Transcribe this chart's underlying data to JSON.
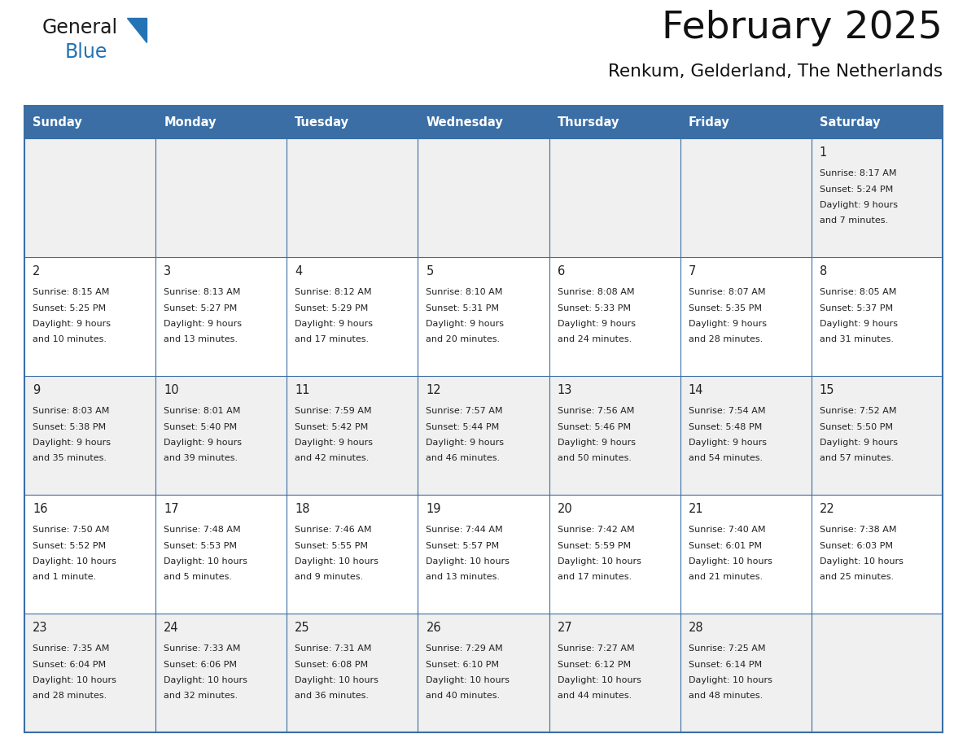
{
  "title": "February 2025",
  "subtitle": "Renkum, Gelderland, The Netherlands",
  "days_of_week": [
    "Sunday",
    "Monday",
    "Tuesday",
    "Wednesday",
    "Thursday",
    "Friday",
    "Saturday"
  ],
  "header_bg": "#3a6ea5",
  "header_fg": "#ffffff",
  "row_bg_odd": "#f0f0f0",
  "row_bg_even": "#ffffff",
  "border_color": "#3a6ea5",
  "cell_border_color": "#3a6ea5",
  "text_color": "#222222",
  "day_num_color": "#222222",
  "logo_color_general": "#1a1a1a",
  "logo_color_blue": "#2473b5",
  "logo_triangle_color": "#2473b5",
  "calendar": [
    [
      null,
      null,
      null,
      null,
      null,
      null,
      {
        "day": 1,
        "sunrise": "8:17 AM",
        "sunset": "5:24 PM",
        "daylight": "9 hours and 7 minutes."
      }
    ],
    [
      {
        "day": 2,
        "sunrise": "8:15 AM",
        "sunset": "5:25 PM",
        "daylight": "9 hours and 10 minutes."
      },
      {
        "day": 3,
        "sunrise": "8:13 AM",
        "sunset": "5:27 PM",
        "daylight": "9 hours and 13 minutes."
      },
      {
        "day": 4,
        "sunrise": "8:12 AM",
        "sunset": "5:29 PM",
        "daylight": "9 hours and 17 minutes."
      },
      {
        "day": 5,
        "sunrise": "8:10 AM",
        "sunset": "5:31 PM",
        "daylight": "9 hours and 20 minutes."
      },
      {
        "day": 6,
        "sunrise": "8:08 AM",
        "sunset": "5:33 PM",
        "daylight": "9 hours and 24 minutes."
      },
      {
        "day": 7,
        "sunrise": "8:07 AM",
        "sunset": "5:35 PM",
        "daylight": "9 hours and 28 minutes."
      },
      {
        "day": 8,
        "sunrise": "8:05 AM",
        "sunset": "5:37 PM",
        "daylight": "9 hours and 31 minutes."
      }
    ],
    [
      {
        "day": 9,
        "sunrise": "8:03 AM",
        "sunset": "5:38 PM",
        "daylight": "9 hours and 35 minutes."
      },
      {
        "day": 10,
        "sunrise": "8:01 AM",
        "sunset": "5:40 PM",
        "daylight": "9 hours and 39 minutes."
      },
      {
        "day": 11,
        "sunrise": "7:59 AM",
        "sunset": "5:42 PM",
        "daylight": "9 hours and 42 minutes."
      },
      {
        "day": 12,
        "sunrise": "7:57 AM",
        "sunset": "5:44 PM",
        "daylight": "9 hours and 46 minutes."
      },
      {
        "day": 13,
        "sunrise": "7:56 AM",
        "sunset": "5:46 PM",
        "daylight": "9 hours and 50 minutes."
      },
      {
        "day": 14,
        "sunrise": "7:54 AM",
        "sunset": "5:48 PM",
        "daylight": "9 hours and 54 minutes."
      },
      {
        "day": 15,
        "sunrise": "7:52 AM",
        "sunset": "5:50 PM",
        "daylight": "9 hours and 57 minutes."
      }
    ],
    [
      {
        "day": 16,
        "sunrise": "7:50 AM",
        "sunset": "5:52 PM",
        "daylight": "10 hours and 1 minute."
      },
      {
        "day": 17,
        "sunrise": "7:48 AM",
        "sunset": "5:53 PM",
        "daylight": "10 hours and 5 minutes."
      },
      {
        "day": 18,
        "sunrise": "7:46 AM",
        "sunset": "5:55 PM",
        "daylight": "10 hours and 9 minutes."
      },
      {
        "day": 19,
        "sunrise": "7:44 AM",
        "sunset": "5:57 PM",
        "daylight": "10 hours and 13 minutes."
      },
      {
        "day": 20,
        "sunrise": "7:42 AM",
        "sunset": "5:59 PM",
        "daylight": "10 hours and 17 minutes."
      },
      {
        "day": 21,
        "sunrise": "7:40 AM",
        "sunset": "6:01 PM",
        "daylight": "10 hours and 21 minutes."
      },
      {
        "day": 22,
        "sunrise": "7:38 AM",
        "sunset": "6:03 PM",
        "daylight": "10 hours and 25 minutes."
      }
    ],
    [
      {
        "day": 23,
        "sunrise": "7:35 AM",
        "sunset": "6:04 PM",
        "daylight": "10 hours and 28 minutes."
      },
      {
        "day": 24,
        "sunrise": "7:33 AM",
        "sunset": "6:06 PM",
        "daylight": "10 hours and 32 minutes."
      },
      {
        "day": 25,
        "sunrise": "7:31 AM",
        "sunset": "6:08 PM",
        "daylight": "10 hours and 36 minutes."
      },
      {
        "day": 26,
        "sunrise": "7:29 AM",
        "sunset": "6:10 PM",
        "daylight": "10 hours and 40 minutes."
      },
      {
        "day": 27,
        "sunrise": "7:27 AM",
        "sunset": "6:12 PM",
        "daylight": "10 hours and 44 minutes."
      },
      {
        "day": 28,
        "sunrise": "7:25 AM",
        "sunset": "6:14 PM",
        "daylight": "10 hours and 48 minutes."
      },
      null
    ]
  ]
}
